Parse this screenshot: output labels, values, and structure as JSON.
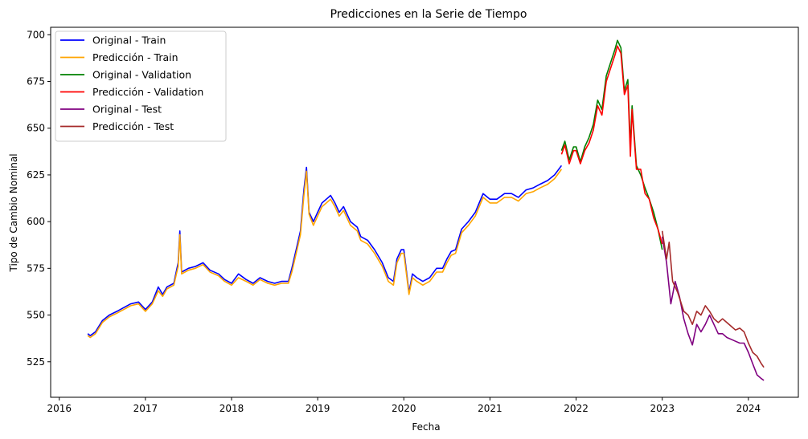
{
  "chart_data": {
    "type": "line",
    "title": "Predicciones en la Serie de Tiempo",
    "xlabel": "Fecha",
    "ylabel": "Tipo de Cambio Nominal",
    "xlim": [
      2015.9,
      2024.58
    ],
    "ylim": [
      506,
      704
    ],
    "x_ticks": [
      2016,
      2017,
      2018,
      2019,
      2020,
      2021,
      2022,
      2023,
      2024
    ],
    "y_ticks": [
      525,
      550,
      575,
      600,
      625,
      650,
      675,
      700
    ],
    "grid": false,
    "legend_position": "top-left",
    "series": [
      {
        "name": "Original - Train",
        "color": "#0000ff",
        "points": [
          [
            2016.33,
            540
          ],
          [
            2016.36,
            539
          ],
          [
            2016.42,
            541
          ],
          [
            2016.5,
            547
          ],
          [
            2016.58,
            550
          ],
          [
            2016.67,
            552
          ],
          [
            2016.75,
            554
          ],
          [
            2016.83,
            556
          ],
          [
            2016.92,
            557
          ],
          [
            2017.0,
            553
          ],
          [
            2017.08,
            557
          ],
          [
            2017.15,
            565
          ],
          [
            2017.2,
            561
          ],
          [
            2017.25,
            565
          ],
          [
            2017.33,
            567
          ],
          [
            2017.38,
            578
          ],
          [
            2017.4,
            595
          ],
          [
            2017.42,
            573
          ],
          [
            2017.5,
            575
          ],
          [
            2017.58,
            576
          ],
          [
            2017.67,
            578
          ],
          [
            2017.75,
            574
          ],
          [
            2017.85,
            572
          ],
          [
            2017.92,
            569
          ],
          [
            2018.0,
            567
          ],
          [
            2018.08,
            572
          ],
          [
            2018.17,
            569
          ],
          [
            2018.25,
            567
          ],
          [
            2018.33,
            570
          ],
          [
            2018.42,
            568
          ],
          [
            2018.5,
            567
          ],
          [
            2018.58,
            568
          ],
          [
            2018.66,
            568
          ],
          [
            2018.7,
            575
          ],
          [
            2018.75,
            585
          ],
          [
            2018.8,
            595
          ],
          [
            2018.84,
            617
          ],
          [
            2018.87,
            629
          ],
          [
            2018.9,
            605
          ],
          [
            2018.95,
            600
          ],
          [
            2019.0,
            605
          ],
          [
            2019.05,
            610
          ],
          [
            2019.1,
            612
          ],
          [
            2019.15,
            614
          ],
          [
            2019.2,
            610
          ],
          [
            2019.25,
            605
          ],
          [
            2019.3,
            608
          ],
          [
            2019.38,
            600
          ],
          [
            2019.46,
            597
          ],
          [
            2019.5,
            592
          ],
          [
            2019.58,
            590
          ],
          [
            2019.66,
            585
          ],
          [
            2019.75,
            578
          ],
          [
            2019.82,
            570
          ],
          [
            2019.88,
            568
          ],
          [
            2019.92,
            580
          ],
          [
            2019.97,
            585
          ],
          [
            2020.0,
            585
          ],
          [
            2020.06,
            562
          ],
          [
            2020.1,
            572
          ],
          [
            2020.15,
            570
          ],
          [
            2020.22,
            568
          ],
          [
            2020.3,
            570
          ],
          [
            2020.38,
            575
          ],
          [
            2020.45,
            575
          ],
          [
            2020.5,
            580
          ],
          [
            2020.55,
            584
          ],
          [
            2020.6,
            585
          ],
          [
            2020.67,
            596
          ],
          [
            2020.75,
            600
          ],
          [
            2020.83,
            605
          ],
          [
            2020.92,
            615
          ],
          [
            2021.0,
            612
          ],
          [
            2021.08,
            612
          ],
          [
            2021.17,
            615
          ],
          [
            2021.25,
            615
          ],
          [
            2021.33,
            613
          ],
          [
            2021.42,
            617
          ],
          [
            2021.5,
            618
          ],
          [
            2021.58,
            620
          ],
          [
            2021.67,
            622
          ],
          [
            2021.75,
            625
          ],
          [
            2021.83,
            630
          ]
        ]
      },
      {
        "name": "Predicción - Train",
        "color": "#ffa500",
        "points": [
          [
            2016.33,
            539
          ],
          [
            2016.36,
            538
          ],
          [
            2016.42,
            540
          ],
          [
            2016.5,
            546
          ],
          [
            2016.58,
            549
          ],
          [
            2016.67,
            551
          ],
          [
            2016.75,
            553
          ],
          [
            2016.83,
            555
          ],
          [
            2016.92,
            556
          ],
          [
            2017.0,
            552
          ],
          [
            2017.08,
            556
          ],
          [
            2017.15,
            563
          ],
          [
            2017.2,
            560
          ],
          [
            2017.25,
            564
          ],
          [
            2017.33,
            566
          ],
          [
            2017.38,
            576
          ],
          [
            2017.4,
            593
          ],
          [
            2017.42,
            572
          ],
          [
            2017.5,
            574
          ],
          [
            2017.58,
            575
          ],
          [
            2017.67,
            577
          ],
          [
            2017.75,
            573
          ],
          [
            2017.85,
            571
          ],
          [
            2017.92,
            568
          ],
          [
            2018.0,
            566
          ],
          [
            2018.08,
            570
          ],
          [
            2018.17,
            568
          ],
          [
            2018.25,
            566
          ],
          [
            2018.33,
            569
          ],
          [
            2018.42,
            567
          ],
          [
            2018.5,
            566
          ],
          [
            2018.58,
            567
          ],
          [
            2018.66,
            567
          ],
          [
            2018.7,
            573
          ],
          [
            2018.75,
            583
          ],
          [
            2018.8,
            593
          ],
          [
            2018.84,
            614
          ],
          [
            2018.87,
            627
          ],
          [
            2018.9,
            604
          ],
          [
            2018.95,
            598
          ],
          [
            2019.0,
            603
          ],
          [
            2019.05,
            608
          ],
          [
            2019.1,
            610
          ],
          [
            2019.15,
            612
          ],
          [
            2019.2,
            608
          ],
          [
            2019.25,
            603
          ],
          [
            2019.3,
            606
          ],
          [
            2019.38,
            598
          ],
          [
            2019.46,
            595
          ],
          [
            2019.5,
            590
          ],
          [
            2019.58,
            588
          ],
          [
            2019.66,
            583
          ],
          [
            2019.75,
            576
          ],
          [
            2019.82,
            568
          ],
          [
            2019.88,
            566
          ],
          [
            2019.92,
            578
          ],
          [
            2019.97,
            583
          ],
          [
            2020.0,
            583
          ],
          [
            2020.06,
            561
          ],
          [
            2020.1,
            570
          ],
          [
            2020.15,
            568
          ],
          [
            2020.22,
            566
          ],
          [
            2020.3,
            568
          ],
          [
            2020.38,
            573
          ],
          [
            2020.45,
            573
          ],
          [
            2020.5,
            578
          ],
          [
            2020.55,
            582
          ],
          [
            2020.6,
            583
          ],
          [
            2020.67,
            594
          ],
          [
            2020.75,
            598
          ],
          [
            2020.83,
            603
          ],
          [
            2020.92,
            613
          ],
          [
            2021.0,
            610
          ],
          [
            2021.08,
            610
          ],
          [
            2021.17,
            613
          ],
          [
            2021.25,
            613
          ],
          [
            2021.33,
            611
          ],
          [
            2021.42,
            615
          ],
          [
            2021.5,
            616
          ],
          [
            2021.58,
            618
          ],
          [
            2021.67,
            620
          ],
          [
            2021.75,
            623
          ],
          [
            2021.83,
            628
          ]
        ]
      },
      {
        "name": "Original - Validation",
        "color": "#008000",
        "points": [
          [
            2021.83,
            638
          ],
          [
            2021.87,
            643
          ],
          [
            2021.92,
            633
          ],
          [
            2021.97,
            640
          ],
          [
            2022.0,
            640
          ],
          [
            2022.05,
            632
          ],
          [
            2022.1,
            640
          ],
          [
            2022.15,
            645
          ],
          [
            2022.2,
            652
          ],
          [
            2022.25,
            665
          ],
          [
            2022.3,
            660
          ],
          [
            2022.35,
            678
          ],
          [
            2022.4,
            685
          ],
          [
            2022.45,
            692
          ],
          [
            2022.48,
            697
          ],
          [
            2022.52,
            693
          ],
          [
            2022.56,
            670
          ],
          [
            2022.6,
            676
          ],
          [
            2022.63,
            640
          ],
          [
            2022.65,
            662
          ],
          [
            2022.7,
            630
          ],
          [
            2022.75,
            625
          ],
          [
            2022.8,
            618
          ],
          [
            2022.85,
            612
          ],
          [
            2022.9,
            605
          ],
          [
            2022.95,
            596
          ],
          [
            2023.0,
            585
          ]
        ]
      },
      {
        "name": "Predicción - Validation",
        "color": "#ff0000",
        "points": [
          [
            2021.83,
            636
          ],
          [
            2021.87,
            641
          ],
          [
            2021.92,
            631
          ],
          [
            2021.97,
            638
          ],
          [
            2022.0,
            638
          ],
          [
            2022.05,
            631
          ],
          [
            2022.1,
            638
          ],
          [
            2022.15,
            642
          ],
          [
            2022.2,
            649
          ],
          [
            2022.25,
            662
          ],
          [
            2022.3,
            657
          ],
          [
            2022.35,
            675
          ],
          [
            2022.4,
            682
          ],
          [
            2022.45,
            689
          ],
          [
            2022.48,
            694
          ],
          [
            2022.52,
            690
          ],
          [
            2022.56,
            668
          ],
          [
            2022.6,
            673
          ],
          [
            2022.63,
            635
          ],
          [
            2022.65,
            660
          ],
          [
            2022.7,
            628
          ],
          [
            2022.75,
            628
          ],
          [
            2022.8,
            615
          ],
          [
            2022.85,
            612
          ],
          [
            2022.9,
            602
          ],
          [
            2022.95,
            596
          ],
          [
            2023.0,
            588
          ]
        ]
      },
      {
        "name": "Original - Test",
        "color": "#800080",
        "points": [
          [
            2023.0,
            592
          ],
          [
            2023.05,
            578
          ],
          [
            2023.1,
            556
          ],
          [
            2023.15,
            568
          ],
          [
            2023.2,
            560
          ],
          [
            2023.25,
            548
          ],
          [
            2023.3,
            540
          ],
          [
            2023.35,
            534
          ],
          [
            2023.4,
            545
          ],
          [
            2023.45,
            541
          ],
          [
            2023.5,
            545
          ],
          [
            2023.55,
            550
          ],
          [
            2023.6,
            545
          ],
          [
            2023.65,
            540
          ],
          [
            2023.7,
            540
          ],
          [
            2023.75,
            538
          ],
          [
            2023.8,
            537
          ],
          [
            2023.85,
            536
          ],
          [
            2023.9,
            535
          ],
          [
            2023.95,
            535
          ],
          [
            2024.0,
            530
          ],
          [
            2024.05,
            524
          ],
          [
            2024.1,
            518
          ],
          [
            2024.15,
            516
          ],
          [
            2024.18,
            515
          ]
        ]
      },
      {
        "name": "Predicción - Test",
        "color": "#a52a2a",
        "points": [
          [
            2023.0,
            595
          ],
          [
            2023.05,
            580
          ],
          [
            2023.08,
            589
          ],
          [
            2023.12,
            568
          ],
          [
            2023.18,
            562
          ],
          [
            2023.25,
            552
          ],
          [
            2023.3,
            550
          ],
          [
            2023.35,
            545
          ],
          [
            2023.4,
            552
          ],
          [
            2023.45,
            550
          ],
          [
            2023.5,
            555
          ],
          [
            2023.55,
            552
          ],
          [
            2023.6,
            548
          ],
          [
            2023.65,
            546
          ],
          [
            2023.7,
            548
          ],
          [
            2023.75,
            546
          ],
          [
            2023.8,
            544
          ],
          [
            2023.85,
            542
          ],
          [
            2023.9,
            543
          ],
          [
            2023.95,
            541
          ],
          [
            2024.0,
            535
          ],
          [
            2024.05,
            530
          ],
          [
            2024.1,
            528
          ],
          [
            2024.15,
            524
          ],
          [
            2024.18,
            522
          ]
        ]
      }
    ]
  }
}
